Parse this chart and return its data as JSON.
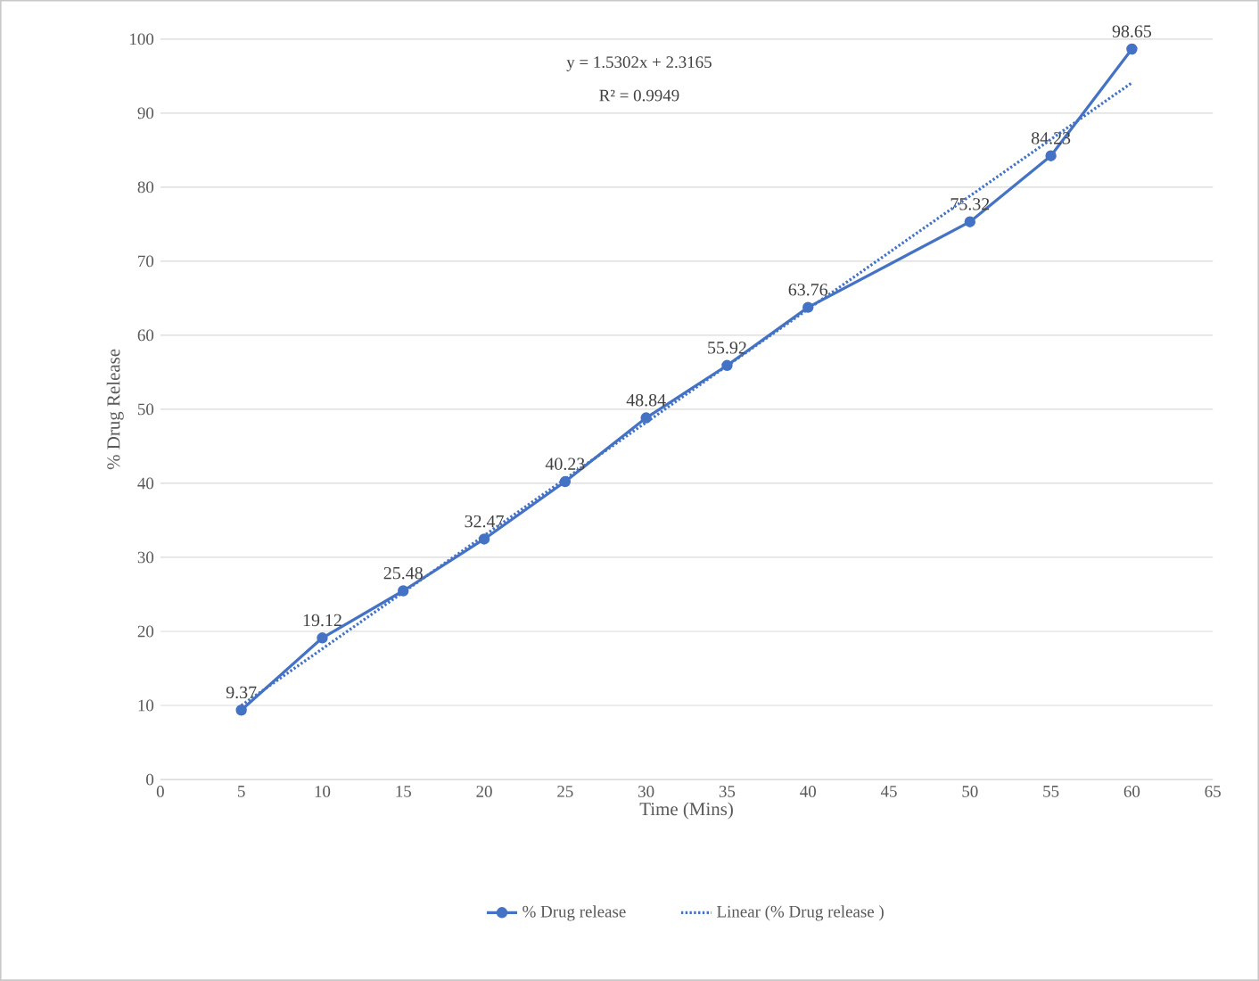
{
  "chart_data": {
    "type": "line",
    "xlabel": "Time (Mins)",
    "ylabel": "% Drug Release",
    "xlim": [
      0,
      65
    ],
    "xticks": [
      0,
      5,
      10,
      15,
      20,
      25,
      30,
      35,
      40,
      45,
      50,
      55,
      60,
      65
    ],
    "ylim": [
      0,
      100
    ],
    "yticks": [
      0,
      10,
      20,
      30,
      40,
      50,
      60,
      70,
      80,
      90,
      100
    ],
    "grid": "y",
    "legend": "bottom",
    "annotations": [
      "y = 1.5302x + 2.3165",
      "R² = 0.9949"
    ],
    "series": [
      {
        "name": "% Drug release",
        "color": "#4472c4",
        "marker": "circle",
        "line_style": "solid",
        "x": [
          5,
          10,
          15,
          20,
          25,
          30,
          35,
          40,
          50,
          55,
          60
        ],
        "values": [
          9.37,
          19.12,
          25.48,
          32.47,
          40.23,
          48.84,
          55.92,
          63.76,
          75.32,
          84.23,
          98.65
        ],
        "value_labels": [
          "9.37",
          "19.12",
          "25.48",
          "32.47",
          "40.23",
          "48.84",
          "55.92",
          "63.76",
          "75.32",
          "84.23",
          "98.65"
        ]
      },
      {
        "name": "Linear (% Drug release )",
        "type": "line",
        "color": "#4472c4",
        "marker": "none",
        "line_style": "dotted",
        "x": [
          5,
          60
        ],
        "values": [
          10,
          94.1
        ]
      }
    ]
  }
}
